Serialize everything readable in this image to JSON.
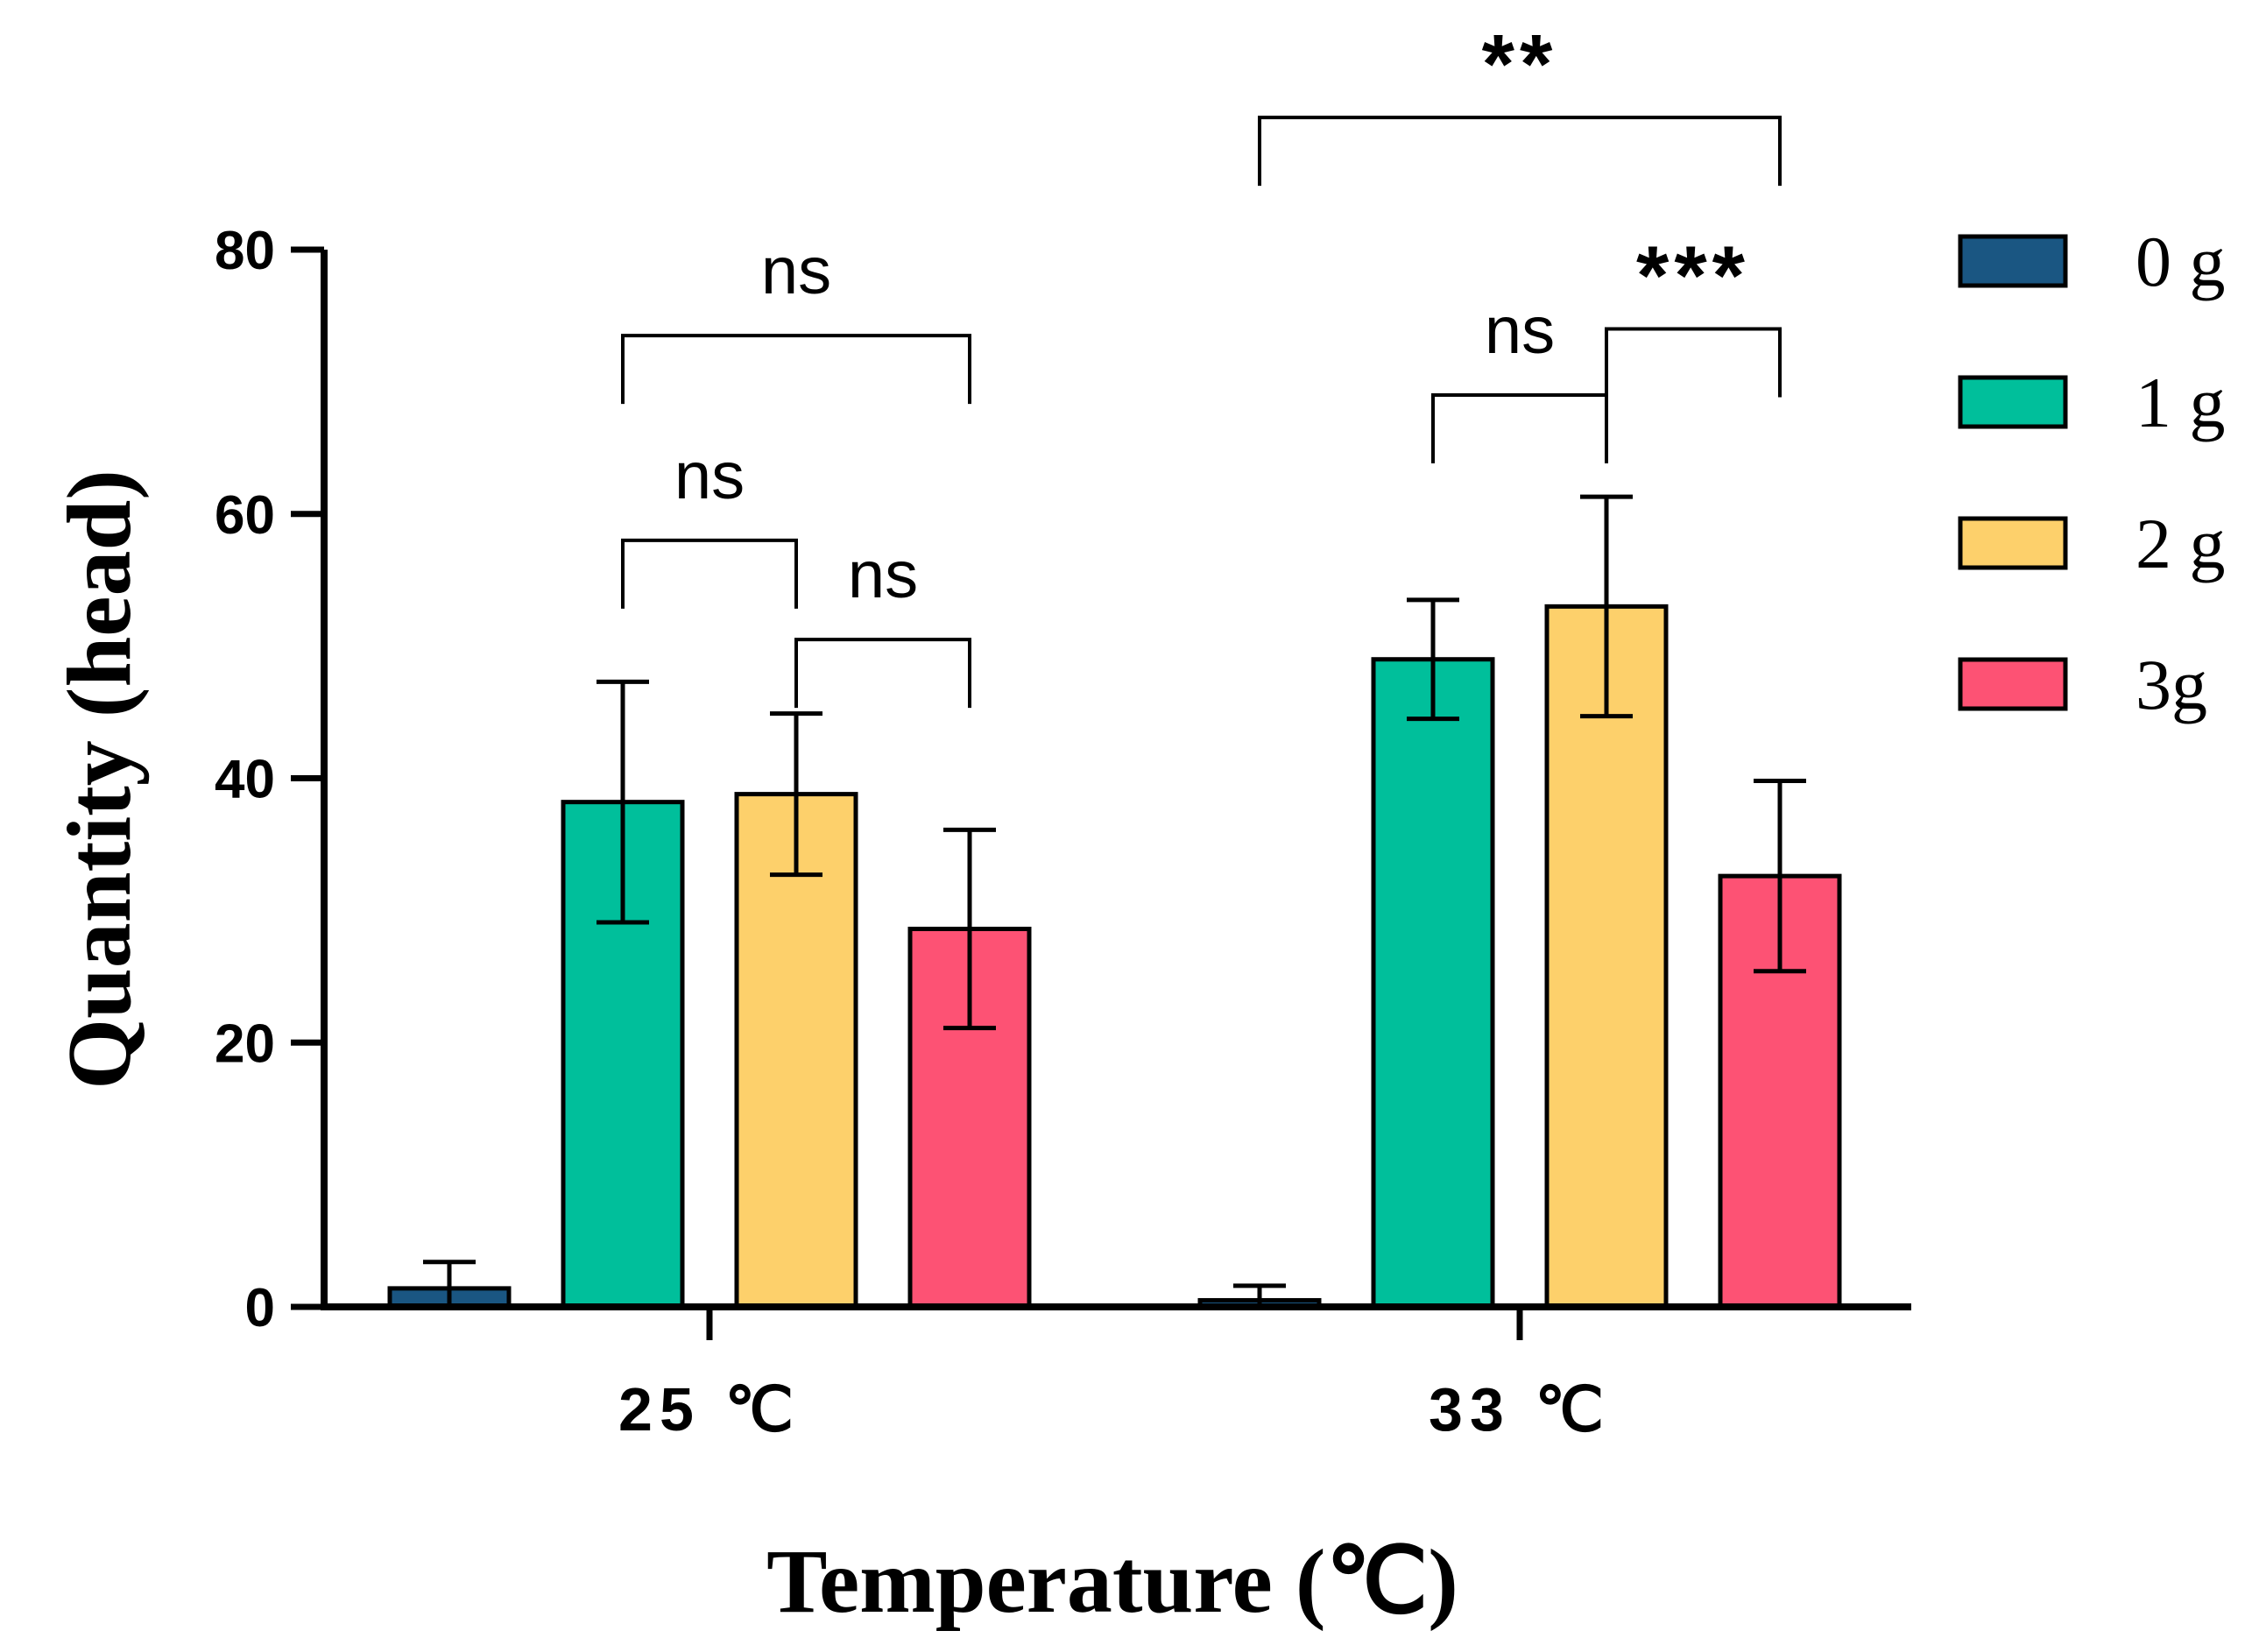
{
  "chart_data": {
    "type": "bar",
    "title": "",
    "xlabel": "Temperature (℃)",
    "ylabel": "Quantity (head)",
    "ylim": [
      0,
      80
    ],
    "yticks": [
      0,
      20,
      40,
      60,
      80
    ],
    "categories": [
      "25 ℃",
      "33 ℃"
    ],
    "series": [
      {
        "name": "0 g",
        "color": "#1a5682",
        "values": [
          1.4,
          0.5
        ],
        "errors": [
          2.0,
          1.1
        ]
      },
      {
        "name": "1 g",
        "color": "#00bf9b",
        "values": [
          38.2,
          49.0
        ],
        "errors": [
          9.1,
          4.5
        ]
      },
      {
        "name": "2 g",
        "color": "#fdd06b",
        "values": [
          38.8,
          53.0
        ],
        "errors": [
          6.1,
          8.3
        ]
      },
      {
        "name": "3g",
        "color": "#fd5274",
        "values": [
          28.6,
          32.6
        ],
        "errors": [
          7.5,
          7.2
        ]
      }
    ],
    "legend_position": "right",
    "annotations": [
      {
        "category": 0,
        "from": 1,
        "to": 3,
        "label": "ns",
        "level": 73.5
      },
      {
        "category": 0,
        "from": 1,
        "to": 2,
        "label": "ns",
        "level": 58.0
      },
      {
        "category": 0,
        "from": 2,
        "to": 3,
        "label": "ns",
        "level": 50.5
      },
      {
        "category": 1,
        "from": 0,
        "to": 3,
        "label": "**",
        "level": 90.0
      },
      {
        "category": 1,
        "from": 1,
        "to": 2,
        "label": "ns",
        "level": 69.0
      },
      {
        "category": 1,
        "from": 2,
        "to": 3,
        "label": "***",
        "level": 74.0
      }
    ]
  }
}
